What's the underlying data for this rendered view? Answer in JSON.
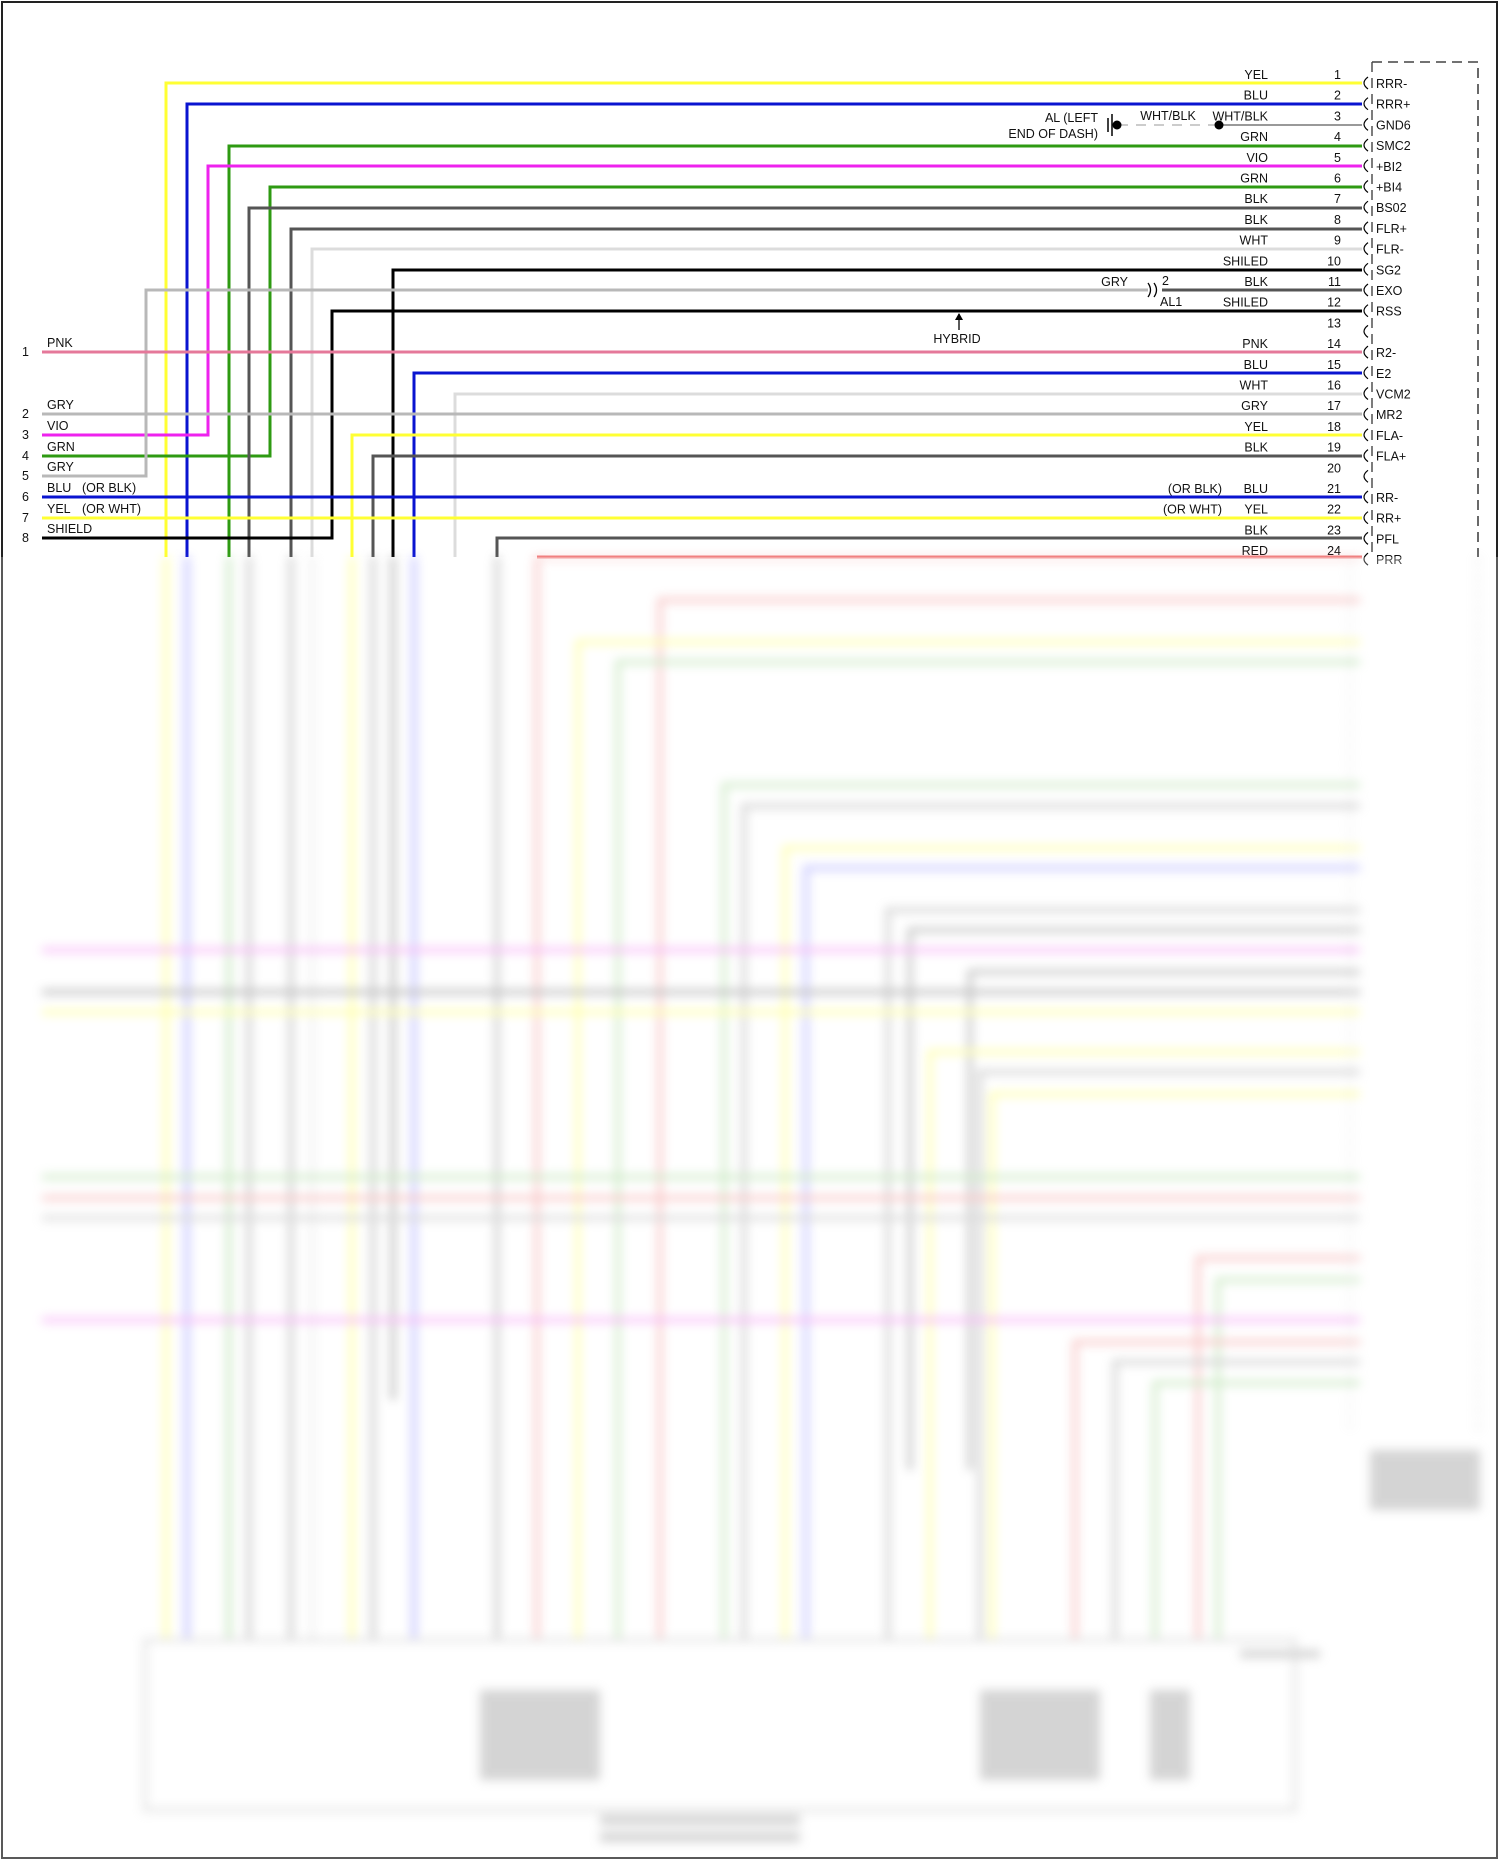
{
  "diagram": {
    "type": "wiring-diagram",
    "colors": {
      "YEL": "#ffff33",
      "BLU": "#0a14d0",
      "GRN": "#2e9a12",
      "VIO": "#ee22ee",
      "BLK": "#555555",
      "WHT": "#d9d9d9",
      "SHIELD": "#000000",
      "GRY": "#b0b0b0",
      "PNK": "#e5789a",
      "RED": "#f08080"
    },
    "right_connector": {
      "pins": [
        {
          "num": "1",
          "wire": "YEL",
          "signal": "RRR-"
        },
        {
          "num": "2",
          "wire": "BLU",
          "signal": "RRR+"
        },
        {
          "num": "3",
          "wire": "WHT/BLK",
          "signal": "GND6"
        },
        {
          "num": "4",
          "wire": "GRN",
          "signal": "SMC2"
        },
        {
          "num": "5",
          "wire": "VIO",
          "signal": "+BI2"
        },
        {
          "num": "6",
          "wire": "GRN",
          "signal": "+BI4"
        },
        {
          "num": "7",
          "wire": "BLK",
          "signal": "BS02"
        },
        {
          "num": "8",
          "wire": "BLK",
          "signal": "FLR+"
        },
        {
          "num": "9",
          "wire": "WHT",
          "signal": "FLR-"
        },
        {
          "num": "10",
          "wire": "SHILED",
          "signal": "SG2"
        },
        {
          "num": "11",
          "wire": "BLK",
          "signal": "EXO"
        },
        {
          "num": "12",
          "wire": "SHILED",
          "signal": "RSS"
        },
        {
          "num": "13",
          "wire": "",
          "signal": ""
        },
        {
          "num": "14",
          "wire": "PNK",
          "signal": "R2-"
        },
        {
          "num": "15",
          "wire": "BLU",
          "signal": "E2"
        },
        {
          "num": "16",
          "wire": "WHT",
          "signal": "VCM2"
        },
        {
          "num": "17",
          "wire": "GRY",
          "signal": "MR2"
        },
        {
          "num": "18",
          "wire": "YEL",
          "signal": "FLA-"
        },
        {
          "num": "19",
          "wire": "BLK",
          "signal": "FLA+"
        },
        {
          "num": "20",
          "wire": "",
          "signal": ""
        },
        {
          "num": "21",
          "wire": "BLU",
          "alt": "(OR BLK)",
          "signal": "RR-"
        },
        {
          "num": "22",
          "wire": "YEL",
          "alt": "(OR WHT)",
          "signal": "RR+"
        },
        {
          "num": "23",
          "wire": "BLK",
          "signal": "PFL"
        },
        {
          "num": "24",
          "wire": "RED",
          "signal": "PRR"
        }
      ]
    },
    "left_connector": {
      "pins": [
        {
          "num": "1",
          "wire": "PNK"
        },
        {
          "num": "2",
          "wire": "GRY"
        },
        {
          "num": "3",
          "wire": "VIO"
        },
        {
          "num": "4",
          "wire": "GRN"
        },
        {
          "num": "5",
          "wire": "GRY"
        },
        {
          "num": "6",
          "wire": "BLU",
          "alt": "(OR BLK)"
        },
        {
          "num": "7",
          "wire": "YEL",
          "alt": "(OR WHT)"
        },
        {
          "num": "8",
          "wire": "SHIELD"
        }
      ]
    },
    "annotations": {
      "ground_label_1": "AL (LEFT",
      "ground_label_2": "END OF DASH)",
      "ground_wire": "WHT/BLK",
      "splice_wire": "GRY",
      "splice_pin": "2",
      "splice_name": "AL1",
      "hybrid_label": "HYBRID"
    },
    "obscured_region_note": "Lower portion of diagram is blurred / not legible"
  }
}
